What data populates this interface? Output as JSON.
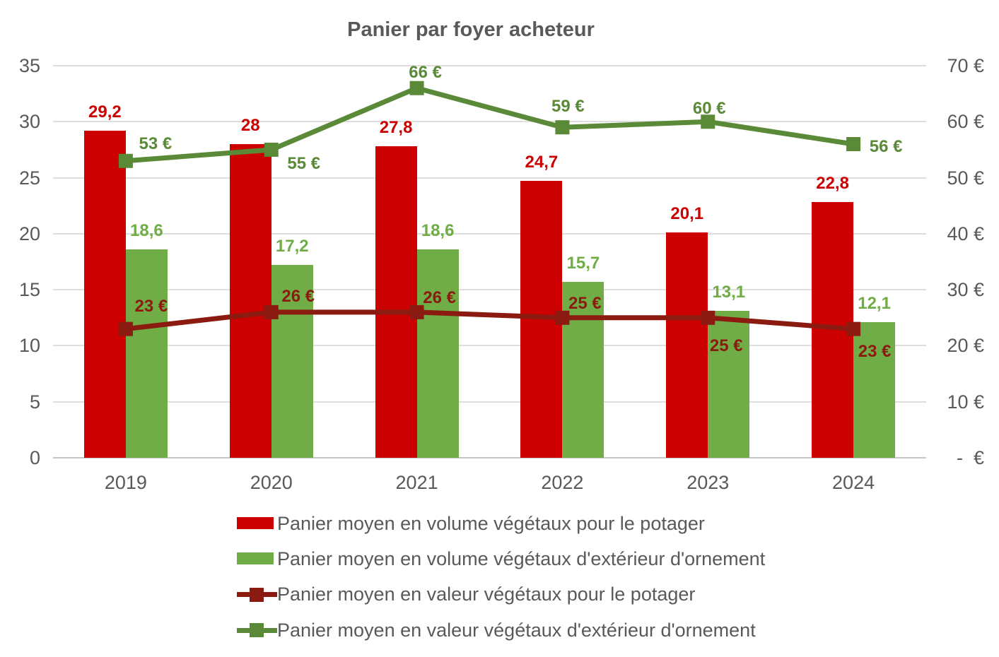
{
  "chart_data": {
    "type": "combo-bar-line",
    "title": "Panier par foyer acheteur",
    "categories": [
      "2019",
      "2020",
      "2021",
      "2022",
      "2023",
      "2024"
    ],
    "left_axis": {
      "min": 0,
      "max": 35,
      "step": 5,
      "ticks": [
        "35",
        "30",
        "25",
        "20",
        "15",
        "10",
        "5",
        "0"
      ]
    },
    "right_axis": {
      "min": 0,
      "max": 70,
      "step": 10,
      "ticks": [
        "70 €",
        "60 €",
        "50 €",
        "40 €",
        "30 €",
        "20 €",
        "10 €",
        "-  €"
      ]
    },
    "grid": true,
    "legend_position": "bottom-left",
    "series": [
      {
        "name": "Panier moyen en volume végétaux pour le potager",
        "type": "bar",
        "axis": "left",
        "color": "#CC0000",
        "values": [
          29.2,
          28,
          27.8,
          24.7,
          20.1,
          22.8
        ],
        "labels": [
          "29,2",
          "28",
          "27,8",
          "24,7",
          "20,1",
          "22,8"
        ]
      },
      {
        "name": "Panier moyen en volume végétaux d'extérieur d'ornement",
        "type": "bar",
        "axis": "left",
        "color": "#70AD47",
        "values": [
          18.6,
          17.2,
          18.6,
          15.7,
          13.1,
          12.1
        ],
        "labels": [
          "18,6",
          "17,2",
          "18,6",
          "15,7",
          "13,1",
          "12,1"
        ]
      },
      {
        "name": "Panier moyen en valeur végétaux pour le potager",
        "type": "line",
        "axis": "right",
        "color": "#8B1A10",
        "values": [
          23,
          26,
          26,
          25,
          25,
          23
        ],
        "labels": [
          "23 €",
          "26 €",
          "26 €",
          "25 €",
          "25 €",
          "23 €"
        ],
        "label_offsets": [
          [
            36,
            -32
          ],
          [
            38,
            -22
          ],
          [
            32,
            -20
          ],
          [
            32,
            -20
          ],
          [
            26,
            40
          ],
          [
            30,
            32
          ]
        ]
      },
      {
        "name": "Panier moyen en valeur végétaux d'extérieur d'ornement",
        "type": "line",
        "axis": "right",
        "color": "#5A8A38",
        "values": [
          53,
          55,
          66,
          59,
          60,
          56
        ],
        "labels": [
          "53 €",
          "55 €",
          "66 €",
          "59 €",
          "60 €",
          "56 €"
        ],
        "label_offsets": [
          [
            42,
            -24
          ],
          [
            46,
            20
          ],
          [
            12,
            -22
          ],
          [
            8,
            -29
          ],
          [
            2,
            -18
          ],
          [
            46,
            4
          ]
        ]
      }
    ]
  }
}
